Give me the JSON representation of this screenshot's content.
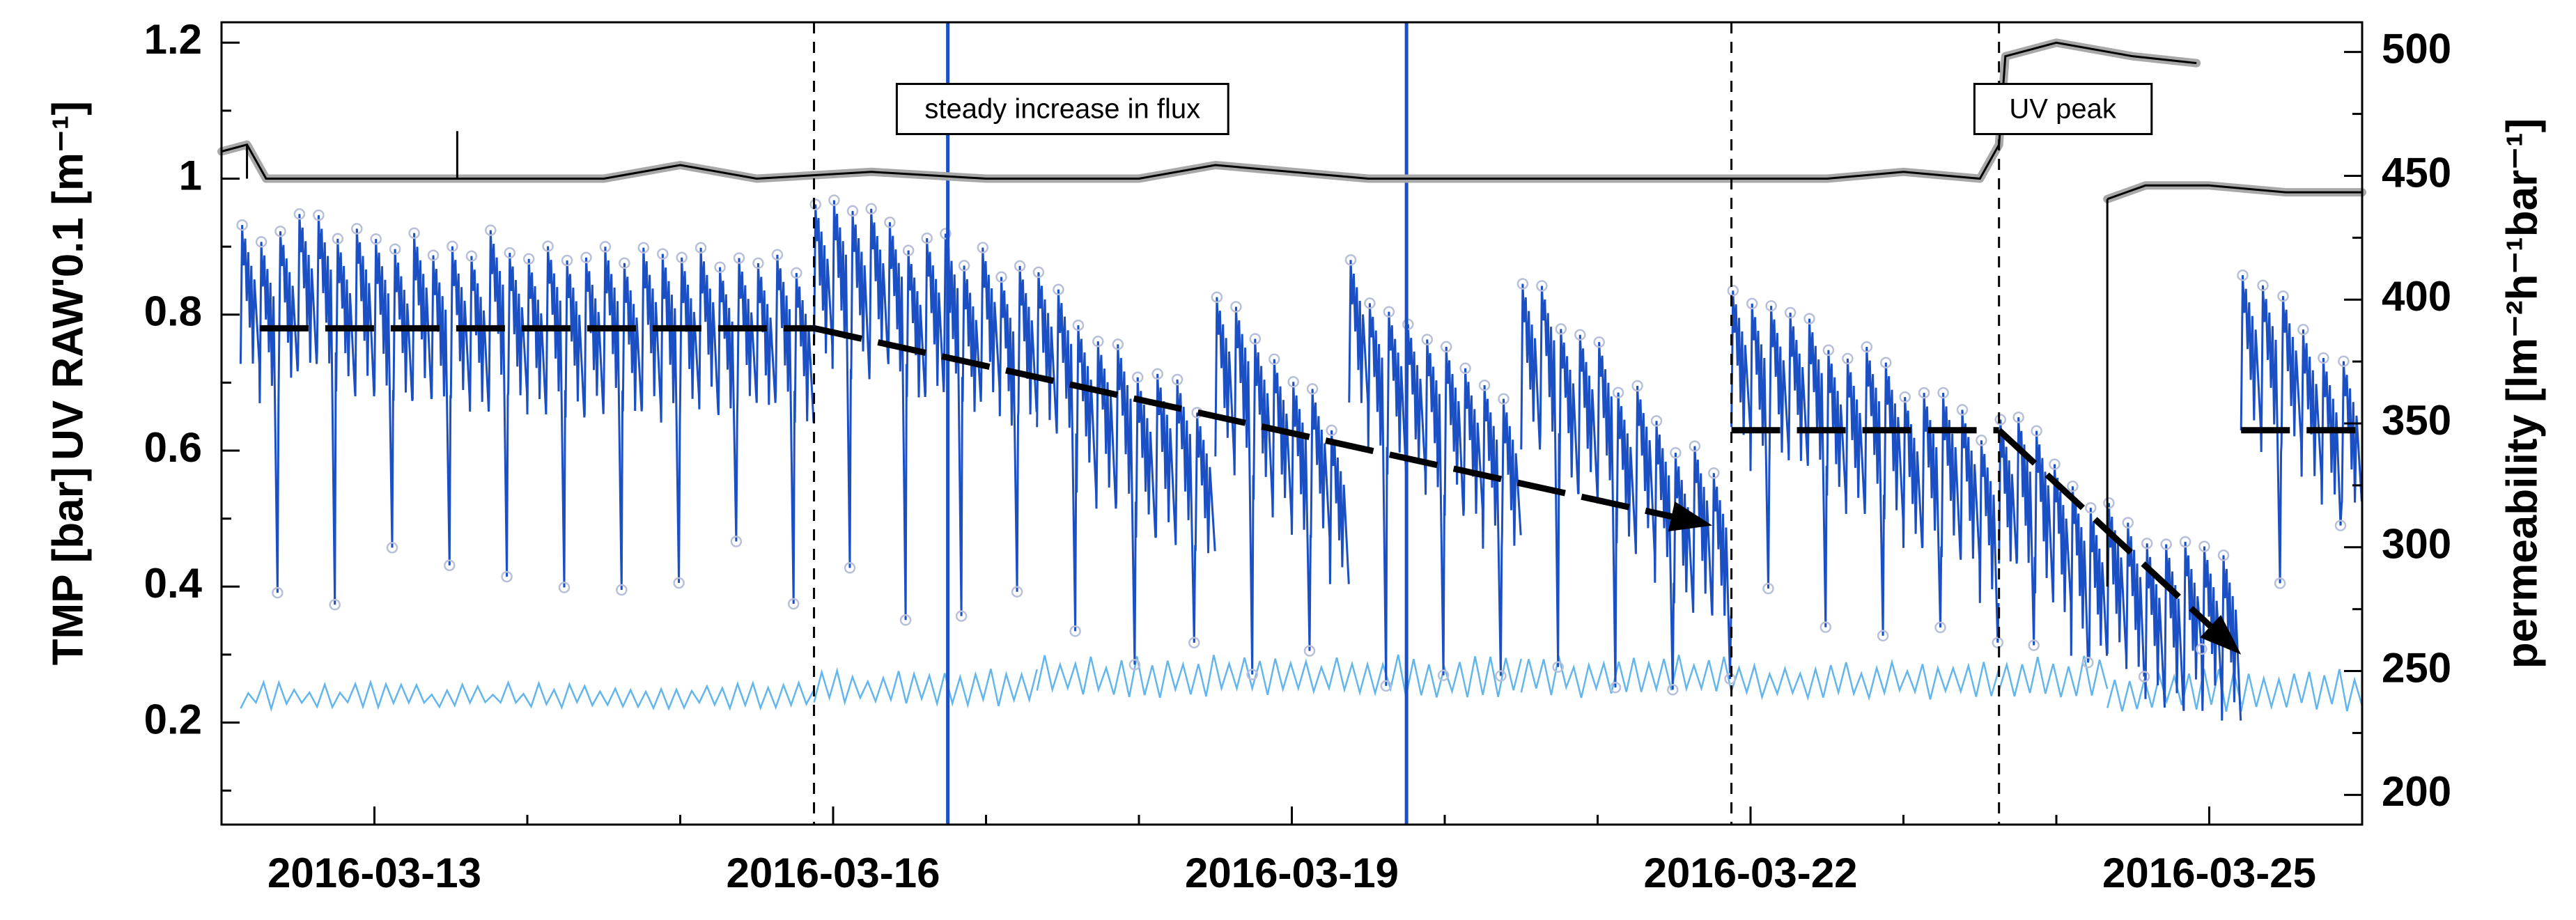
{
  "chart_data": {
    "type": "line",
    "left_axis_label_tmp": "TMP [bar]",
    "left_axis_label_uv": "UV RAW'0.1 [m⁻¹]",
    "right_axis_label": "permeability [lm⁻²h⁻¹bar⁻¹]",
    "left_ylim": [
      0.05,
      1.23
    ],
    "left_ticks": [
      "0.2",
      "0.4",
      "0.6",
      "0.8",
      "1",
      "1.2"
    ],
    "left_tick_values": [
      0.2,
      0.4,
      0.6,
      0.8,
      1.0,
      1.2
    ],
    "right_ylim": [
      188,
      512
    ],
    "right_ticks": [
      "200",
      "250",
      "300",
      "350",
      "400",
      "450",
      "500"
    ],
    "right_tick_values": [
      200,
      250,
      300,
      350,
      400,
      450,
      500
    ],
    "xlim": [
      "2016-03-12",
      "2016-03-26"
    ],
    "x_ticks": [
      "2016-03-13",
      "2016-03-16",
      "2016-03-19",
      "2016-03-22",
      "2016-03-25"
    ],
    "grid": false,
    "vertical_markers": [
      "2016-03-15T21:00",
      "2016-03-21T21:00",
      "2016-03-23T15:00"
    ],
    "annotations": [
      {
        "text": "steady increase in flux",
        "x": "2016-03-17T12:00",
        "y": 1.1
      },
      {
        "text": "UV peak",
        "x": "2016-03-24T01:00",
        "y": 1.1
      }
    ],
    "trend_lines": [
      {
        "start": [
          "2016-03-12T06:00",
          0.78
        ],
        "end": [
          "2016-03-15T21:00",
          0.78
        ],
        "arrow": false
      },
      {
        "start": [
          "2016-03-15T21:00",
          0.78
        ],
        "end": [
          "2016-03-21T18:00",
          0.49
        ],
        "arrow": true
      },
      {
        "start": [
          "2016-03-21T21:00",
          0.63
        ],
        "end": [
          "2016-03-23T15:00",
          0.63
        ],
        "arrow": false
      },
      {
        "start": [
          "2016-03-23T15:00",
          0.63
        ],
        "end": [
          "2016-03-25T05:00",
          0.3
        ],
        "arrow": true
      },
      {
        "start": [
          "2016-03-25T05:00",
          0.63
        ],
        "end": [
          "2016-03-26T00:00",
          0.63
        ],
        "arrow": false
      }
    ],
    "series": [
      {
        "color": "#1b4fc4",
        "marker_color": "#b8bfd8",
        "daily_cycles": 8,
        "segments": [
          {
            "start": "2016-03-12T03:00",
            "end": "2016-03-15T21:00",
            "peak": 0.93,
            "drop": 0.06,
            "trough": 0.42
          },
          {
            "start": "2016-03-15T21:00",
            "end": "2016-03-17T08:00",
            "peak": 0.96,
            "drop": 0.1,
            "trough": 0.38
          },
          {
            "start": "2016-03-17T08:00",
            "end": "2016-03-18T12:00",
            "peak": 0.84,
            "drop": 0.18,
            "trough": 0.3
          },
          {
            "start": "2016-03-18T12:00",
            "end": "2016-03-19T09:00",
            "peak": 0.82,
            "drop": 0.18,
            "trough": 0.32
          },
          {
            "start": "2016-03-19T09:00",
            "end": "2016-03-20T12:00",
            "peak": 0.86,
            "drop": 0.2,
            "trough": 0.3
          },
          {
            "start": "2016-03-20T12:00",
            "end": "2016-03-21T21:00",
            "peak": 0.86,
            "drop": 0.3,
            "trough": 0.25
          },
          {
            "start": "2016-03-21T21:00",
            "end": "2016-03-23T15:00",
            "peak": 0.84,
            "drop": 0.2,
            "trough": 0.35
          },
          {
            "start": "2016-03-23T15:00",
            "end": "2016-03-24T08:00",
            "peak": 0.66,
            "drop": 0.12,
            "trough": 0.3
          },
          {
            "start": "2016-03-24T08:00",
            "end": "2016-03-25T05:00",
            "peak": 0.5,
            "drop": 0.06,
            "trough": 0.28
          },
          {
            "start": "2016-03-25T05:00",
            "end": "2016-03-26T00:00",
            "peak": 0.86,
            "drop": 0.14,
            "trough": 0.45
          }
        ]
      },
      {
        "color": "#63b6ec",
        "daily_cycles": 8,
        "segments": [
          {
            "start": "2016-03-12T03:00",
            "end": "2016-03-15T21:00",
            "low": 0.21,
            "high": 0.26
          },
          {
            "start": "2016-03-15T21:00",
            "end": "2016-03-17T08:00",
            "low": 0.21,
            "high": 0.28
          },
          {
            "start": "2016-03-17T08:00",
            "end": "2016-03-20T12:00",
            "low": 0.22,
            "high": 0.3
          },
          {
            "start": "2016-03-20T12:00",
            "end": "2016-03-21T21:00",
            "low": 0.22,
            "high": 0.3
          },
          {
            "start": "2016-03-21T21:00",
            "end": "2016-03-23T15:00",
            "low": 0.22,
            "high": 0.29
          },
          {
            "start": "2016-03-23T15:00",
            "end": "2016-03-24T08:00",
            "low": 0.22,
            "high": 0.3
          },
          {
            "start": "2016-03-24T08:00",
            "end": "2016-03-25T05:00",
            "low": 0.2,
            "high": 0.28
          },
          {
            "start": "2016-03-25T05:00",
            "end": "2016-03-26T00:00",
            "low": 0.2,
            "high": 0.28
          }
        ]
      },
      {
        "color": "#000000",
        "marker_color": "#a8a8a8",
        "points": [
          [
            "2016-03-12T00:00",
            1.04
          ],
          [
            "2016-03-12T04:00",
            1.05
          ],
          [
            "2016-03-12T07:00",
            1.0
          ],
          [
            "2016-03-13T00:00",
            1.0
          ],
          [
            "2016-03-13T12:00",
            1.0
          ],
          [
            "2016-03-14T12:00",
            1.0
          ],
          [
            "2016-03-15T00:00",
            1.02
          ],
          [
            "2016-03-15T12:00",
            1.0
          ],
          [
            "2016-03-16T06:00",
            1.01
          ],
          [
            "2016-03-17T00:00",
            1.0
          ],
          [
            "2016-03-18T00:00",
            1.0
          ],
          [
            "2016-03-18T12:00",
            1.02
          ],
          [
            "2016-03-19T12:00",
            1.0
          ],
          [
            "2016-03-20T12:00",
            1.0
          ],
          [
            "2016-03-21T12:00",
            1.0
          ],
          [
            "2016-03-22T12:00",
            1.0
          ],
          [
            "2016-03-23T00:00",
            1.01
          ],
          [
            "2016-03-23T12:00",
            1.0
          ],
          [
            "2016-03-23T15:00",
            1.05
          ],
          [
            "2016-03-23T16:00",
            1.18
          ],
          [
            "2016-03-24T00:00",
            1.2
          ],
          [
            "2016-03-24T12:00",
            1.18
          ],
          [
            "2016-03-24T22:00",
            1.17
          ]
        ]
      },
      {
        "color": "#000000",
        "marker_color": "#a8a8a8",
        "points": [
          [
            "2016-03-24T08:00",
            0.97
          ],
          [
            "2016-03-24T14:00",
            0.99
          ],
          [
            "2016-03-25T00:00",
            0.99
          ],
          [
            "2016-03-25T12:00",
            0.98
          ],
          [
            "2016-03-26T00:00",
            0.98
          ]
        ]
      }
    ]
  }
}
